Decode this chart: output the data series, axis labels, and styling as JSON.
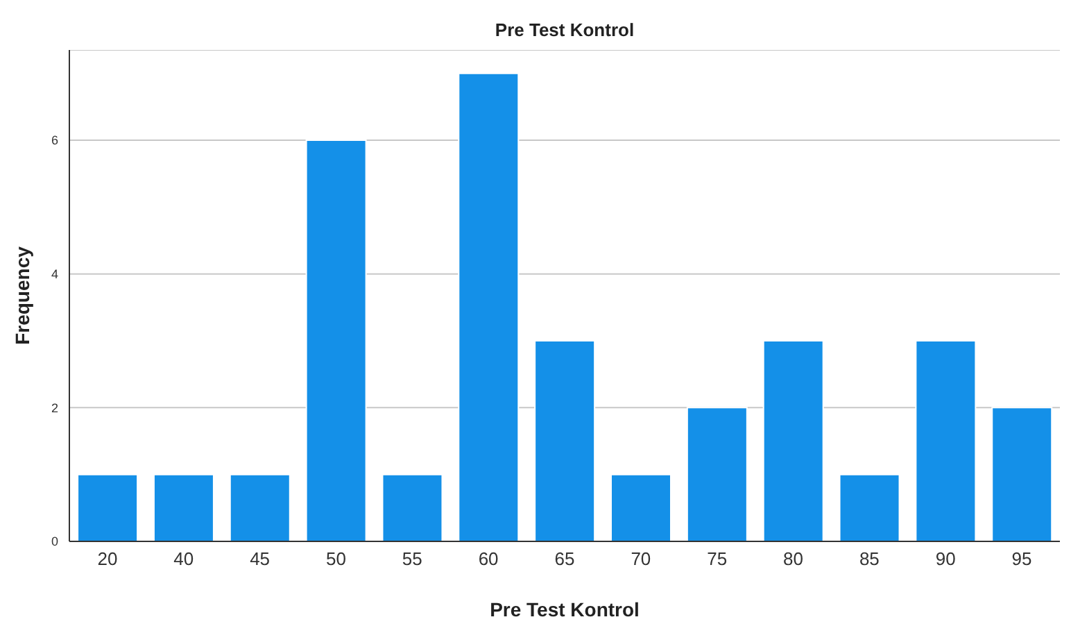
{
  "chart_data": {
    "type": "bar",
    "title": "Pre Test Kontrol",
    "xlabel": "Pre Test Kontrol",
    "ylabel": "Frequency",
    "categories": [
      "20",
      "40",
      "45",
      "50",
      "55",
      "60",
      "65",
      "70",
      "75",
      "80",
      "85",
      "90",
      "95"
    ],
    "values": [
      1,
      1,
      1,
      6,
      1,
      7,
      3,
      1,
      2,
      3,
      1,
      3,
      2
    ],
    "color": "#1490e8",
    "ylim": [
      0,
      7.35
    ],
    "yticks": [
      0,
      2,
      4,
      6
    ],
    "grid": "y"
  }
}
